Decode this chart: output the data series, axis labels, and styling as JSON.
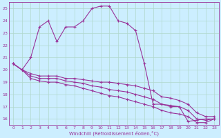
{
  "xlabel": "Windchill (Refroidissement éolien,°C)",
  "bg_color": "#cceeff",
  "line_color": "#993399",
  "grid_color": "#b0d8cc",
  "ylim": [
    15.5,
    25.5
  ],
  "xlim": [
    -0.5,
    23.5
  ],
  "yticks": [
    16,
    17,
    18,
    19,
    20,
    21,
    22,
    23,
    24,
    25
  ],
  "xticks": [
    0,
    1,
    2,
    3,
    4,
    5,
    6,
    7,
    8,
    9,
    10,
    11,
    12,
    13,
    14,
    15,
    16,
    17,
    18,
    19,
    20,
    21,
    22,
    23
  ],
  "series": [
    {
      "x": [
        0,
        1,
        2,
        3,
        4,
        5,
        6,
        7,
        8,
        9,
        10,
        11,
        12,
        13,
        14,
        15,
        16,
        17,
        18,
        19,
        20,
        21,
        22,
        23
      ],
      "y": [
        20.5,
        20.0,
        21.0,
        23.5,
        24.0,
        22.3,
        23.5,
        23.5,
        24.0,
        25.0,
        25.2,
        25.2,
        24.0,
        23.8,
        23.2,
        20.5,
        17.2,
        17.2,
        17.0,
        17.0,
        15.8,
        15.9,
        16.0,
        16.0
      ]
    },
    {
      "x": [
        0,
        1,
        2,
        3,
        4,
        5,
        6,
        7,
        8,
        9,
        10,
        11,
        12,
        13,
        14,
        15,
        16,
        17,
        18,
        19,
        20,
        21,
        22,
        23
      ],
      "y": [
        20.5,
        20.0,
        19.7,
        19.5,
        19.5,
        19.5,
        19.3,
        19.3,
        19.2,
        19.1,
        19.0,
        19.0,
        18.9,
        18.8,
        18.7,
        18.5,
        18.3,
        17.8,
        17.7,
        17.5,
        17.2,
        16.5,
        16.2,
        16.2
      ]
    },
    {
      "x": [
        0,
        1,
        2,
        3,
        4,
        5,
        6,
        7,
        8,
        9,
        10,
        11,
        12,
        13,
        14,
        15,
        16,
        17,
        18,
        19,
        20,
        21,
        22,
        23
      ],
      "y": [
        20.5,
        20.0,
        19.5,
        19.3,
        19.3,
        19.3,
        19.1,
        19.0,
        18.9,
        18.7,
        18.6,
        18.4,
        18.3,
        18.2,
        18.0,
        17.8,
        17.6,
        17.2,
        17.1,
        17.0,
        16.7,
        16.0,
        15.9,
        16.0
      ]
    },
    {
      "x": [
        0,
        1,
        2,
        3,
        4,
        5,
        6,
        7,
        8,
        9,
        10,
        11,
        12,
        13,
        14,
        15,
        16,
        17,
        18,
        19,
        20,
        21,
        22,
        23
      ],
      "y": [
        20.5,
        20.0,
        19.3,
        19.1,
        19.0,
        19.0,
        18.8,
        18.7,
        18.5,
        18.3,
        18.1,
        17.9,
        17.8,
        17.6,
        17.4,
        17.2,
        17.0,
        16.7,
        16.5,
        16.4,
        16.2,
        15.7,
        15.7,
        16.0
      ]
    }
  ]
}
